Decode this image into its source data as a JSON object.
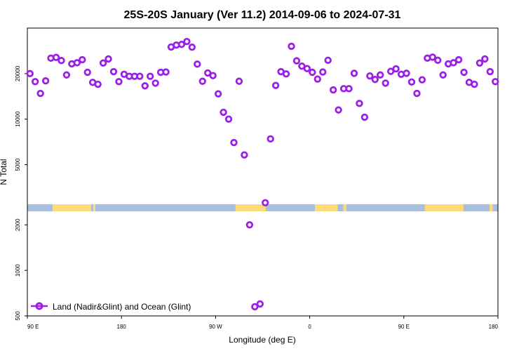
{
  "chart_data": {
    "type": "scatter",
    "title": "25S-20S January (Ver 11.2)   2014-09-06 to 2024-07-31",
    "xlabel": "Longitude (deg E)",
    "ylabel": "N Total",
    "x_ticks": [
      {
        "value": 90,
        "label": "90 E"
      },
      {
        "value": 180,
        "label": "180"
      },
      {
        "value": 270,
        "label": "90 W"
      },
      {
        "value": 360,
        "label": "0"
      },
      {
        "value": 450,
        "label": "90 E"
      },
      {
        "value": 540,
        "label": "180"
      }
    ],
    "xlim": [
      90,
      540
    ],
    "y_ticks": [
      {
        "value": 500,
        "label": "500"
      },
      {
        "value": 1000,
        "label": "1000"
      },
      {
        "value": 2000,
        "label": "2000"
      },
      {
        "value": 5000,
        "label": "5000"
      },
      {
        "value": 10000,
        "label": "10000"
      },
      {
        "value": 20000,
        "label": "20000"
      }
    ],
    "ylim": [
      500,
      40000
    ],
    "legend": {
      "position": "bottom-left",
      "label": "Land (Nadir&Glint) and Ocean (Glint)"
    },
    "marker_color": "#9b1fe8",
    "land_color": "#fdd978",
    "ocean_color": "#a7bedd",
    "land_ranges": [
      [
        114,
        151
      ],
      [
        153,
        155
      ],
      [
        289,
        318
      ],
      [
        365,
        387
      ],
      [
        392,
        395
      ],
      [
        470,
        507
      ],
      [
        532,
        535
      ]
    ],
    "series": [
      {
        "name": "Land (Nadir&Glint) and Ocean (Glint)",
        "x": [
          92.5,
          97.5,
          102.5,
          107.5,
          112.5,
          117.5,
          122.5,
          127.5,
          132.5,
          137.5,
          142.5,
          147.5,
          152.5,
          157.5,
          162.5,
          167.5,
          172.5,
          177.5,
          182.5,
          187.5,
          192.5,
          197.5,
          202.5,
          207.5,
          212.5,
          217.5,
          222.5,
          227.5,
          232.5,
          237.5,
          242.5,
          247.5,
          252.5,
          257.5,
          262.5,
          267.5,
          272.5,
          277.5,
          282.5,
          287.5,
          292.5,
          297.5,
          302.5,
          307.5,
          312.5,
          317.5,
          322.5,
          327.5,
          332.5,
          337.5,
          342.5,
          347.5,
          352.5,
          357.5,
          362.5,
          367.5,
          372.5,
          377.5,
          382.5,
          387.5,
          392.5,
          397.5,
          402.5,
          407.5,
          412.5,
          417.5,
          422.5,
          427.5,
          432.5,
          437.5,
          442.5,
          447.5,
          452.5,
          457.5,
          462.5,
          467.5,
          472.5,
          477.5,
          482.5,
          487.5,
          492.5,
          497.5,
          502.5,
          507.5,
          512.5,
          517.5,
          522.5,
          527.5,
          532.5,
          537.5
        ],
        "values": [
          20000,
          17700,
          14800,
          17900,
          25300,
          25600,
          24400,
          19600,
          23200,
          23600,
          24700,
          20400,
          17500,
          17000,
          23500,
          25000,
          20600,
          17700,
          19800,
          19200,
          19200,
          19200,
          16600,
          19200,
          17300,
          20400,
          20500,
          30000,
          30900,
          31200,
          32600,
          29900,
          23100,
          17800,
          20200,
          19400,
          14700,
          11100,
          10000,
          7000,
          17800,
          5800,
          2000,
          575,
          600,
          2800,
          7400,
          16700,
          20600,
          19900,
          30300,
          24300,
          22400,
          21600,
          20400,
          18400,
          20500,
          24500,
          15600,
          11500,
          15900,
          15900,
          20100,
          12700,
          10300,
          19300,
          18300,
          19600,
          17300,
          20700,
          21500,
          19800,
          20100,
          17600,
          14800,
          18200,
          25300,
          25700,
          24500,
          19600,
          23200,
          23600,
          24700,
          20400,
          17500,
          17000,
          23500,
          25000,
          20600,
          17700
        ]
      }
    ]
  }
}
